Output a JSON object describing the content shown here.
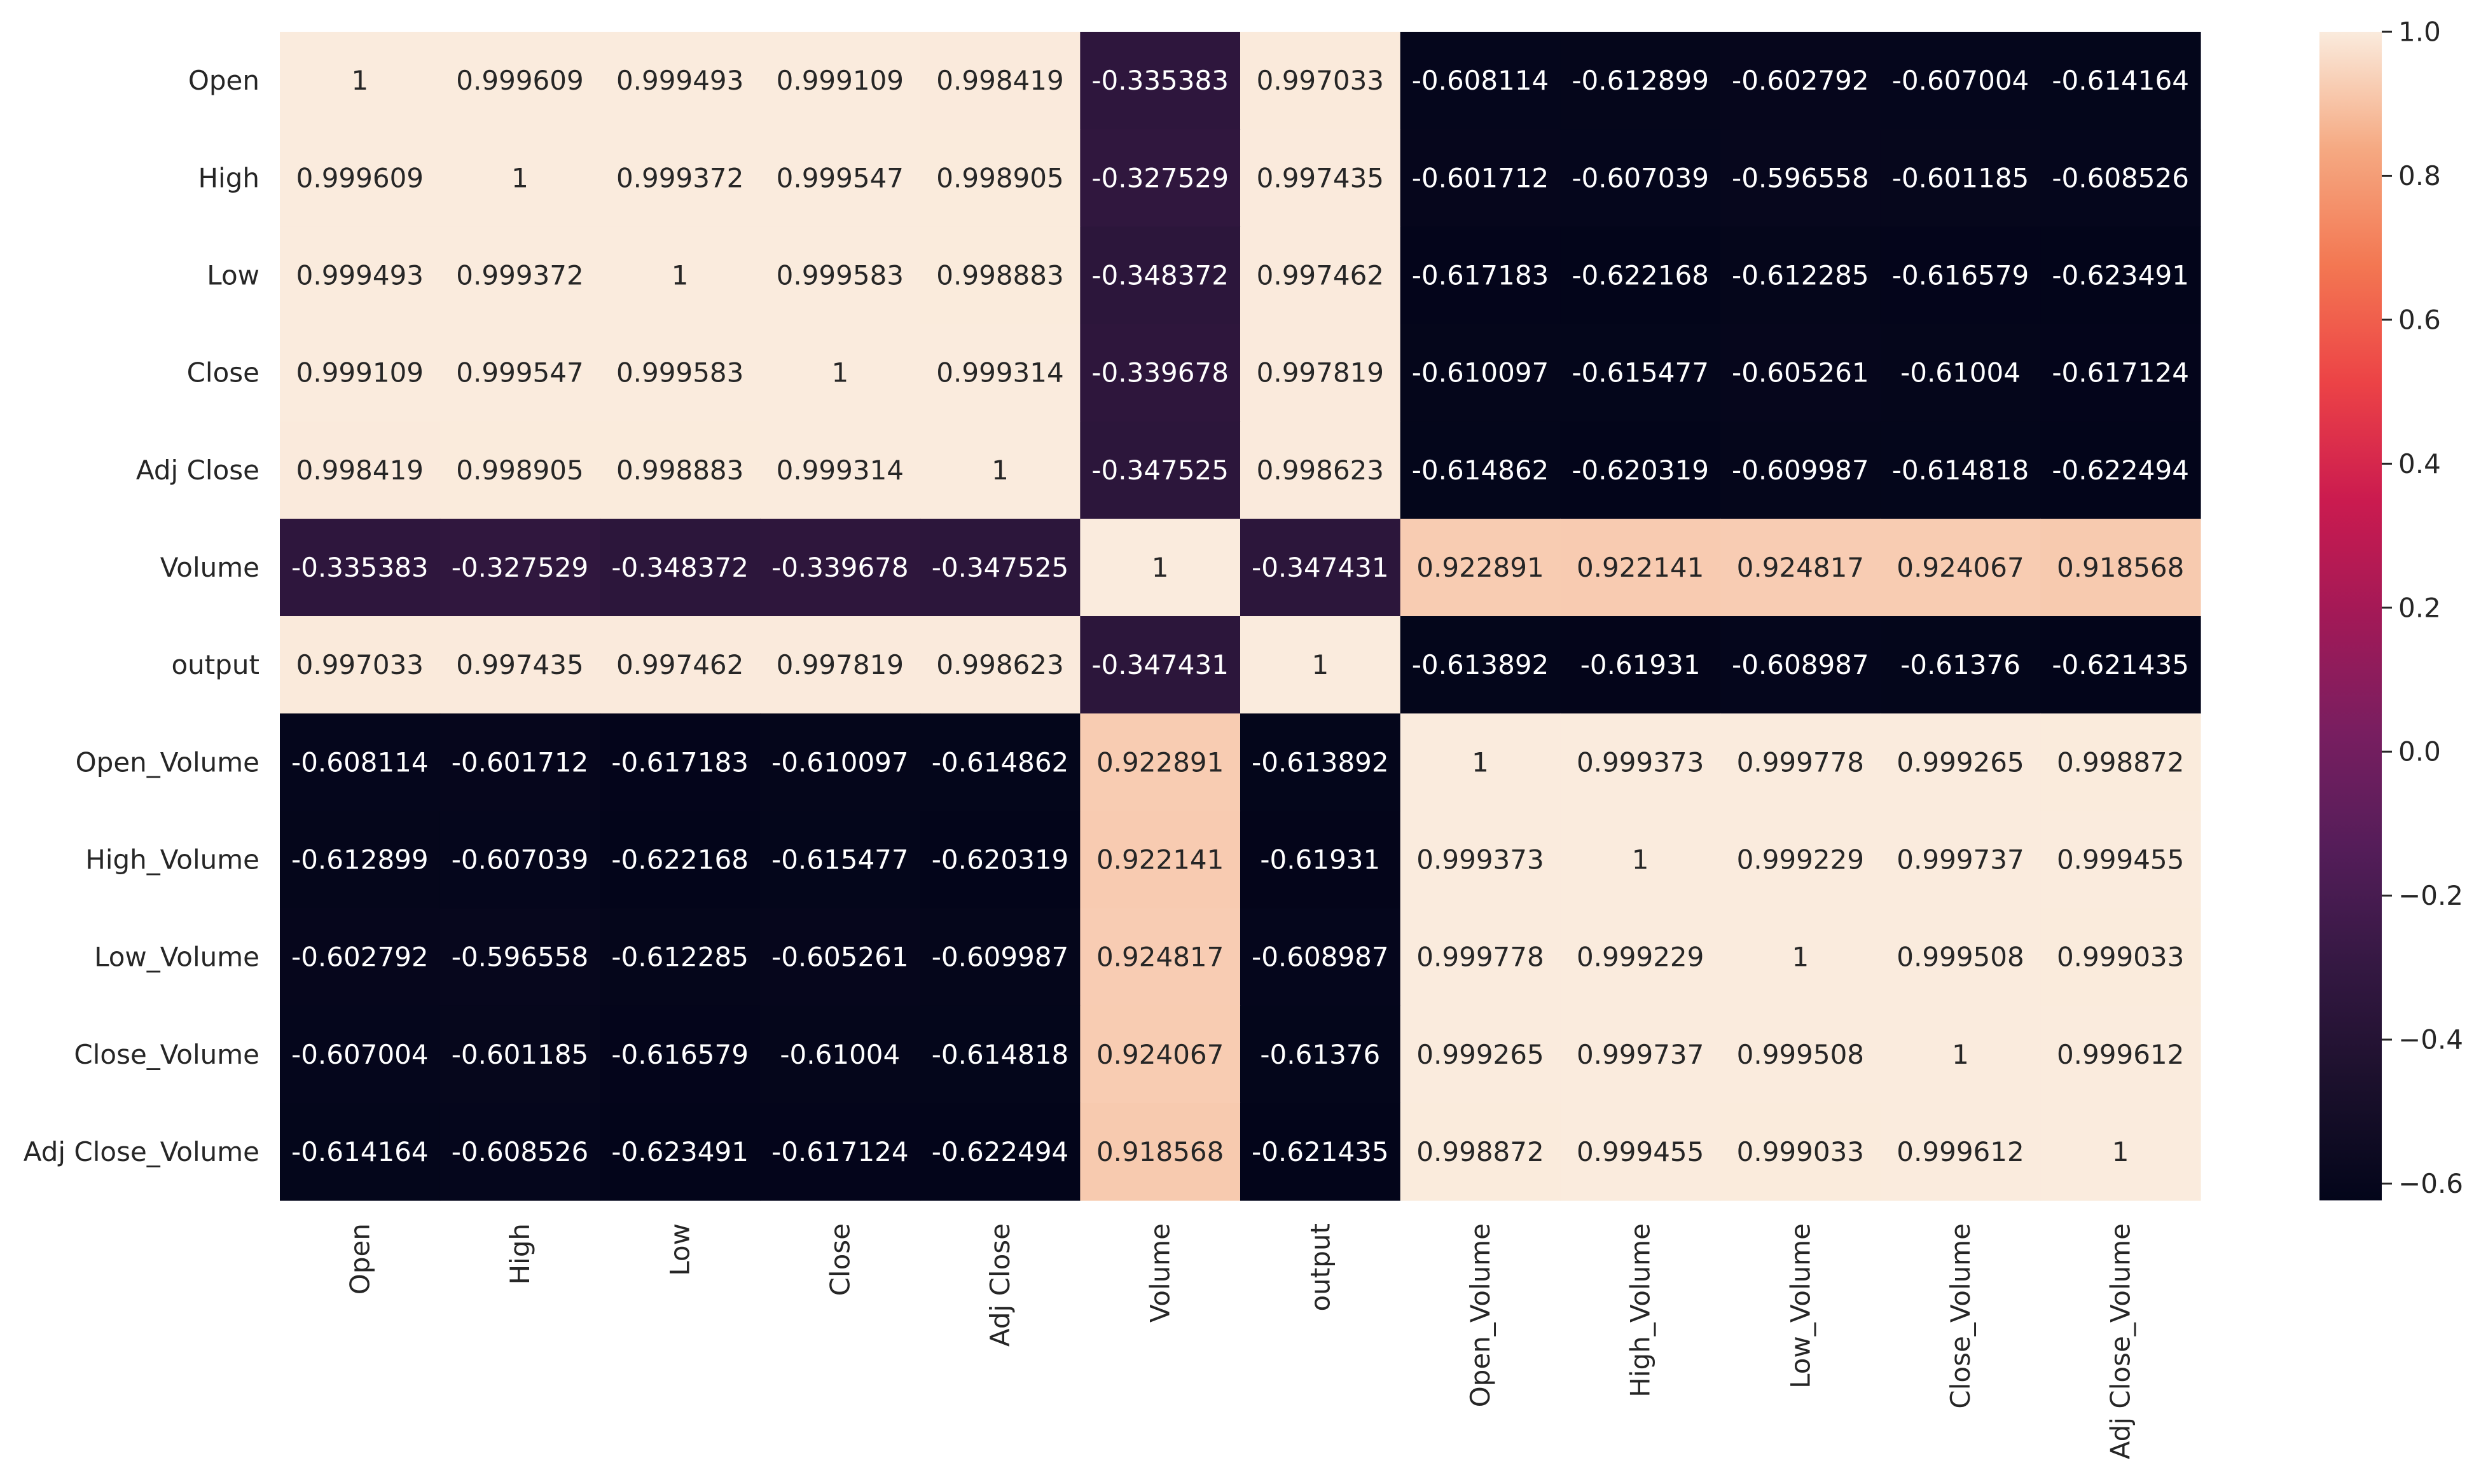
{
  "chart_data": {
    "type": "heatmap",
    "title": "",
    "xlabel": "",
    "ylabel": "",
    "labels": [
      "Open",
      "High",
      "Low",
      "Close",
      "Adj Close",
      "Volume",
      "output",
      "Open_Volume",
      "High_Volume",
      "Low_Volume",
      "Close_Volume",
      "Adj Close_Volume"
    ],
    "values": [
      [
        1,
        0.999609,
        0.999493,
        0.999109,
        0.998419,
        -0.335383,
        0.997033,
        -0.608114,
        -0.612899,
        -0.602792,
        -0.607004,
        -0.614164
      ],
      [
        0.999609,
        1,
        0.999372,
        0.999547,
        0.998905,
        -0.327529,
        0.997435,
        -0.601712,
        -0.607039,
        -0.596558,
        -0.601185,
        -0.608526
      ],
      [
        0.999493,
        0.999372,
        1,
        0.999583,
        0.998883,
        -0.348372,
        0.997462,
        -0.617183,
        -0.622168,
        -0.612285,
        -0.616579,
        -0.623491
      ],
      [
        0.999109,
        0.999547,
        0.999583,
        1,
        0.999314,
        -0.339678,
        0.997819,
        -0.610097,
        -0.615477,
        -0.605261,
        -0.61004,
        -0.617124
      ],
      [
        0.998419,
        0.998905,
        0.998883,
        0.999314,
        1,
        -0.347525,
        0.998623,
        -0.614862,
        -0.620319,
        -0.609987,
        -0.614818,
        -0.622494
      ],
      [
        -0.335383,
        -0.327529,
        -0.348372,
        -0.339678,
        -0.347525,
        1,
        -0.347431,
        0.922891,
        0.922141,
        0.924817,
        0.924067,
        0.918568
      ],
      [
        0.997033,
        0.997435,
        0.997462,
        0.997819,
        0.998623,
        -0.347431,
        1,
        -0.613892,
        -0.61931,
        -0.608987,
        -0.61376,
        -0.621435
      ],
      [
        -0.608114,
        -0.601712,
        -0.617183,
        -0.610097,
        -0.614862,
        0.922891,
        -0.613892,
        1,
        0.999373,
        0.999778,
        0.999265,
        0.998872
      ],
      [
        -0.612899,
        -0.607039,
        -0.622168,
        -0.615477,
        -0.620319,
        0.922141,
        -0.61931,
        0.999373,
        1,
        0.999229,
        0.999737,
        0.999455
      ],
      [
        -0.602792,
        -0.596558,
        -0.612285,
        -0.605261,
        -0.609987,
        0.924817,
        -0.608987,
        0.999778,
        0.999229,
        1,
        0.999508,
        0.999033
      ],
      [
        -0.607004,
        -0.601185,
        -0.616579,
        -0.61004,
        -0.614818,
        0.924067,
        -0.61376,
        0.999265,
        0.999737,
        0.999508,
        1,
        0.999612
      ],
      [
        -0.614164,
        -0.608526,
        -0.623491,
        -0.617124,
        -0.622494,
        0.918568,
        -0.621435,
        0.998872,
        0.999455,
        0.999033,
        0.999612,
        1
      ]
    ],
    "colorbar": {
      "range": [
        -0.6234,
        1.0
      ],
      "ticks": [
        1.0,
        0.8,
        0.6,
        0.4,
        0.2,
        0.0,
        -0.2,
        -0.4,
        -0.6
      ],
      "tick_labels": [
        "1.0",
        "0.8",
        "0.6",
        "0.4",
        "0.2",
        "0.0",
        "−0.2",
        "−0.4",
        "−0.6"
      ],
      "colormap": "rocket"
    }
  }
}
